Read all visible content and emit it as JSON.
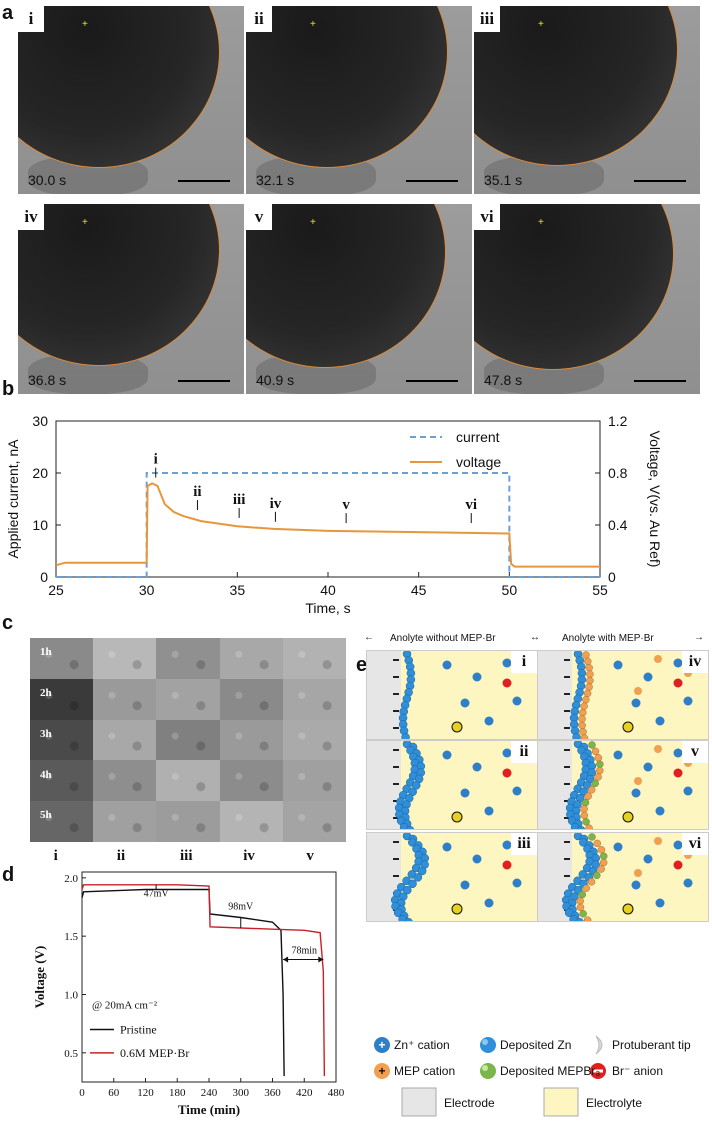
{
  "panel_labels": {
    "a": "a",
    "b": "b",
    "c": "c",
    "d": "d",
    "e": "e"
  },
  "panel_a": {
    "frames": [
      {
        "tag": "i",
        "time": "30.0 s"
      },
      {
        "tag": "ii",
        "time": "32.1 s"
      },
      {
        "tag": "iii",
        "time": "35.1 s"
      },
      {
        "tag": "iv",
        "time": "36.8 s"
      },
      {
        "tag": "v",
        "time": "40.9 s"
      },
      {
        "tag": "vi",
        "time": "47.8 s"
      }
    ]
  },
  "chart_data": [
    {
      "type": "line",
      "panel": "b",
      "xlabel": "Time, s",
      "ylabel": "Applied current, nA",
      "ylabel_right": "Voltage, V(vs. Au Ref)",
      "xlim": [
        25,
        55
      ],
      "ylim": [
        0,
        30
      ],
      "ylim_right": [
        0,
        1.2
      ],
      "x_ticks": [
        "25",
        "30",
        "35",
        "40",
        "45",
        "50",
        "55"
      ],
      "y_ticks": [
        "0",
        "10",
        "20",
        "30"
      ],
      "y_ticks_right": [
        "0",
        "0.4",
        "0.8",
        "1.2"
      ],
      "legend_position": "top-right",
      "series": [
        {
          "name": "current",
          "axis": "left",
          "color": "#6a9fd8",
          "style": "dashed",
          "x": [
            25,
            30,
            30,
            50,
            50,
            55
          ],
          "y": [
            0,
            0,
            20,
            20,
            0,
            0
          ]
        },
        {
          "name": "voltage",
          "axis": "right",
          "color": "#e8963c",
          "style": "solid",
          "x": [
            25,
            25.5,
            30,
            30.05,
            30.3,
            30.6,
            31,
            31.5,
            32,
            33,
            35,
            37,
            40,
            45,
            50,
            50.1,
            50.3,
            55
          ],
          "y": [
            0.09,
            0.11,
            0.11,
            0.7,
            0.72,
            0.7,
            0.56,
            0.5,
            0.47,
            0.43,
            0.39,
            0.37,
            0.355,
            0.345,
            0.335,
            0.1,
            0.08,
            0.08
          ]
        }
      ],
      "annotations": [
        {
          "label": "i",
          "x": 30.5,
          "y": 0.78
        },
        {
          "label": "ii",
          "x": 32.8,
          "y": 0.53
        },
        {
          "label": "iii",
          "x": 35.1,
          "y": 0.47
        },
        {
          "label": "iv",
          "x": 37.1,
          "y": 0.44
        },
        {
          "label": "v",
          "x": 41,
          "y": 0.43
        },
        {
          "label": "vi",
          "x": 47.9,
          "y": 0.43
        }
      ]
    },
    {
      "type": "line",
      "panel": "d",
      "xlabel": "Time (min)",
      "ylabel": "Voltage (V)",
      "xlim": [
        0,
        480
      ],
      "ylim": [
        0.25,
        2.05
      ],
      "x_ticks": [
        "0",
        "60",
        "120",
        "180",
        "240",
        "300",
        "360",
        "420",
        "480"
      ],
      "y_ticks": [
        "0.5",
        "1.0",
        "1.5",
        "2.0"
      ],
      "legend_position": "bottom-left",
      "condition": "@ 20mA cm⁻²",
      "series": [
        {
          "name": "Pristine",
          "color": "#111111",
          "x": [
            0,
            3,
            60,
            120,
            180,
            240,
            242,
            300,
            360,
            376,
            380,
            382
          ],
          "y": [
            1.83,
            1.88,
            1.89,
            1.9,
            1.9,
            1.9,
            1.69,
            1.66,
            1.62,
            1.55,
            1.0,
            0.3
          ]
        },
        {
          "name": "0.6M MEP·Br",
          "color": "#c8202a",
          "x": [
            0,
            3,
            60,
            120,
            180,
            240,
            242,
            300,
            360,
            420,
            450,
            456,
            458
          ],
          "y": [
            1.9,
            1.94,
            1.94,
            1.94,
            1.94,
            1.93,
            1.58,
            1.57,
            1.56,
            1.55,
            1.53,
            1.2,
            0.3
          ]
        }
      ],
      "annotations": [
        {
          "label": "47mV",
          "x": 140,
          "y": 1.84
        },
        {
          "label": "98mV",
          "x": 300,
          "y": 1.73
        },
        {
          "label": "78min",
          "x": 420,
          "y": 1.35
        }
      ]
    }
  ],
  "panel_c": {
    "row_labels": [
      "1h",
      "2h",
      "3h",
      "4h",
      "5h"
    ],
    "col_labels": [
      "i",
      "ii",
      "iii",
      "iv",
      "v"
    ]
  },
  "panel_e": {
    "header_left": "Anolyte without MEP·Br",
    "header_right": "Anolyte with MEP·Br",
    "cells_left": [
      "i",
      "ii",
      "iii"
    ],
    "cells_right": [
      "iv",
      "v",
      "vi"
    ],
    "legend": [
      {
        "key": "zn_cation",
        "label": "Zn⁺ cation",
        "color": "#2f7fc8"
      },
      {
        "key": "deposited_zn",
        "label": "Deposited Zn",
        "color": "#2f8fd8"
      },
      {
        "key": "protuberant_tip",
        "label": "Protuberant tip",
        "color": "#e0e0e0"
      },
      {
        "key": "mep_cation",
        "label": "MEP cation",
        "color": "#f0a050"
      },
      {
        "key": "deposited_mepbr3",
        "label": "Deposited MEPBr₃",
        "color": "#7ab64a"
      },
      {
        "key": "br_anion",
        "label": "Br⁻ anion",
        "color": "#e02020"
      },
      {
        "key": "electrode",
        "label": "Electrode",
        "color": "#e6e6e6"
      },
      {
        "key": "electrolyte",
        "label": "Electrolyte",
        "color": "#fdf6c0"
      }
    ]
  }
}
